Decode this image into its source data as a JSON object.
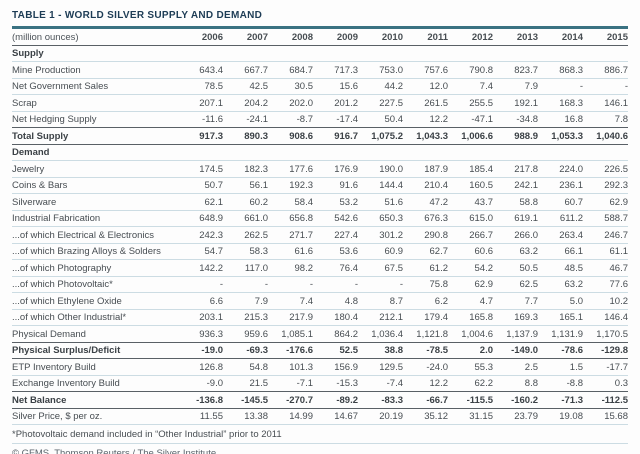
{
  "title": "TABLE 1 - WORLD SILVER SUPPLY AND DEMAND",
  "colors": {
    "accent_rule": "#3a7282",
    "title_text": "#1d3c55",
    "body_text": "#474d52",
    "light_line": "#ccdce3",
    "dark_line": "#596066"
  },
  "table": {
    "unit_label": "(million ounces)",
    "years": [
      "2006",
      "2007",
      "2008",
      "2009",
      "2010",
      "2011",
      "2012",
      "2013",
      "2014",
      "2015"
    ],
    "rows": [
      {
        "label": "Supply",
        "style": "section",
        "border": "light",
        "values": [
          "",
          "",
          "",
          "",
          "",
          "",
          "",
          "",
          "",
          ""
        ]
      },
      {
        "label": "Mine Production",
        "style": "normal",
        "border": "light",
        "values": [
          "643.4",
          "667.7",
          "684.7",
          "717.3",
          "753.0",
          "757.6",
          "790.8",
          "823.7",
          "868.3",
          "886.7"
        ]
      },
      {
        "label": "Net Government Sales",
        "style": "normal",
        "border": "light",
        "values": [
          "78.5",
          "42.5",
          "30.5",
          "15.6",
          "44.2",
          "12.0",
          "7.4",
          "7.9",
          "-",
          "-"
        ]
      },
      {
        "label": "Scrap",
        "style": "normal",
        "border": "light",
        "values": [
          "207.1",
          "204.2",
          "202.0",
          "201.2",
          "227.5",
          "261.5",
          "255.5",
          "192.1",
          "168.3",
          "146.1"
        ]
      },
      {
        "label": "Net Hedging Supply",
        "style": "normal",
        "border": "dark",
        "values": [
          "-11.6",
          "-24.1",
          "-8.7",
          "-17.4",
          "50.4",
          "12.2",
          "-47.1",
          "-34.8",
          "16.8",
          "7.8"
        ]
      },
      {
        "label": "Total Supply",
        "style": "bold",
        "border": "dark",
        "values": [
          "917.3",
          "890.3",
          "908.6",
          "916.7",
          "1,075.2",
          "1,043.3",
          "1,006.6",
          "988.9",
          "1,053.3",
          "1,040.6"
        ]
      },
      {
        "label": "Demand",
        "style": "section",
        "border": "light",
        "values": [
          "",
          "",
          "",
          "",
          "",
          "",
          "",
          "",
          "",
          ""
        ]
      },
      {
        "label": "Jewelry",
        "style": "normal",
        "border": "light",
        "values": [
          "174.5",
          "182.3",
          "177.6",
          "176.9",
          "190.0",
          "187.9",
          "185.4",
          "217.8",
          "224.0",
          "226.5"
        ]
      },
      {
        "label": "Coins & Bars",
        "style": "normal",
        "border": "light",
        "values": [
          "50.7",
          "56.1",
          "192.3",
          "91.6",
          "144.4",
          "210.4",
          "160.5",
          "242.1",
          "236.1",
          "292.3"
        ]
      },
      {
        "label": "Silverware",
        "style": "normal",
        "border": "light",
        "values": [
          "62.1",
          "60.2",
          "58.4",
          "53.2",
          "51.6",
          "47.2",
          "43.7",
          "58.8",
          "60.7",
          "62.9"
        ]
      },
      {
        "label": "Industrial Fabrication",
        "style": "normal",
        "border": "light",
        "values": [
          "648.9",
          "661.0",
          "656.8",
          "542.6",
          "650.3",
          "676.3",
          "615.0",
          "619.1",
          "611.2",
          "588.7"
        ]
      },
      {
        "label": "...of which Electrical & Electronics",
        "style": "normal",
        "border": "light",
        "values": [
          "242.3",
          "262.5",
          "271.7",
          "227.4",
          "301.2",
          "290.8",
          "266.7",
          "266.0",
          "263.4",
          "246.7"
        ]
      },
      {
        "label": "...of which Brazing Alloys & Solders",
        "style": "normal",
        "border": "light",
        "values": [
          "54.7",
          "58.3",
          "61.6",
          "53.6",
          "60.9",
          "62.7",
          "60.6",
          "63.2",
          "66.1",
          "61.1"
        ]
      },
      {
        "label": "...of which Photography",
        "style": "normal",
        "border": "light",
        "values": [
          "142.2",
          "117.0",
          "98.2",
          "76.4",
          "67.5",
          "61.2",
          "54.2",
          "50.5",
          "48.5",
          "46.7"
        ]
      },
      {
        "label": "...of which Photovoltaic*",
        "style": "normal",
        "border": "light",
        "values": [
          "-",
          "-",
          "-",
          "-",
          "-",
          "75.8",
          "62.9",
          "62.5",
          "63.2",
          "77.6"
        ]
      },
      {
        "label": "...of which Ethylene Oxide",
        "style": "normal",
        "border": "light",
        "values": [
          "6.6",
          "7.9",
          "7.4",
          "4.8",
          "8.7",
          "6.2",
          "4.7",
          "7.7",
          "5.0",
          "10.2"
        ]
      },
      {
        "label": "...of which Other Industrial*",
        "style": "normal",
        "border": "light",
        "values": [
          "203.1",
          "215.3",
          "217.9",
          "180.4",
          "212.1",
          "179.4",
          "165.8",
          "169.3",
          "165.1",
          "146.4"
        ]
      },
      {
        "label": "Physical Demand",
        "style": "normal",
        "border": "dark",
        "values": [
          "936.3",
          "959.6",
          "1,085.1",
          "864.2",
          "1,036.4",
          "1,121.8",
          "1,004.6",
          "1,137.9",
          "1,131.9",
          "1,170.5"
        ]
      },
      {
        "label": "Physical Surplus/Deficit",
        "style": "bold",
        "border": "dark",
        "values": [
          "-19.0",
          "-69.3",
          "-176.6",
          "52.5",
          "38.8",
          "-78.5",
          "2.0",
          "-149.0",
          "-78.6",
          "-129.8"
        ]
      },
      {
        "label": "ETP Inventory Build",
        "style": "normal",
        "border": "light",
        "values": [
          "126.8",
          "54.8",
          "101.3",
          "156.9",
          "129.5",
          "-24.0",
          "55.3",
          "2.5",
          "1.5",
          "-17.7"
        ]
      },
      {
        "label": "Exchange Inventory Build",
        "style": "normal",
        "border": "dark",
        "values": [
          "-9.0",
          "21.5",
          "-7.1",
          "-15.3",
          "-7.4",
          "12.2",
          "62.2",
          "8.8",
          "-8.8",
          "0.3"
        ]
      },
      {
        "label": "Net Balance",
        "style": "bold",
        "border": "dark",
        "values": [
          "-136.8",
          "-145.5",
          "-270.7",
          "-89.2",
          "-83.3",
          "-66.7",
          "-115.5",
          "-160.2",
          "-71.3",
          "-112.5"
        ]
      },
      {
        "label": "Silver Price, $ per oz.",
        "style": "normal",
        "border": "light",
        "values": [
          "11.55",
          "13.38",
          "14.99",
          "14.67",
          "20.19",
          "35.12",
          "31.15",
          "23.79",
          "19.08",
          "15.68"
        ]
      }
    ]
  },
  "footnote": "*Photovoltaic demand included in “Other Industrial” prior to 2011",
  "copyright": "© GFMS, Thomson Reuters / The Silver Institute"
}
